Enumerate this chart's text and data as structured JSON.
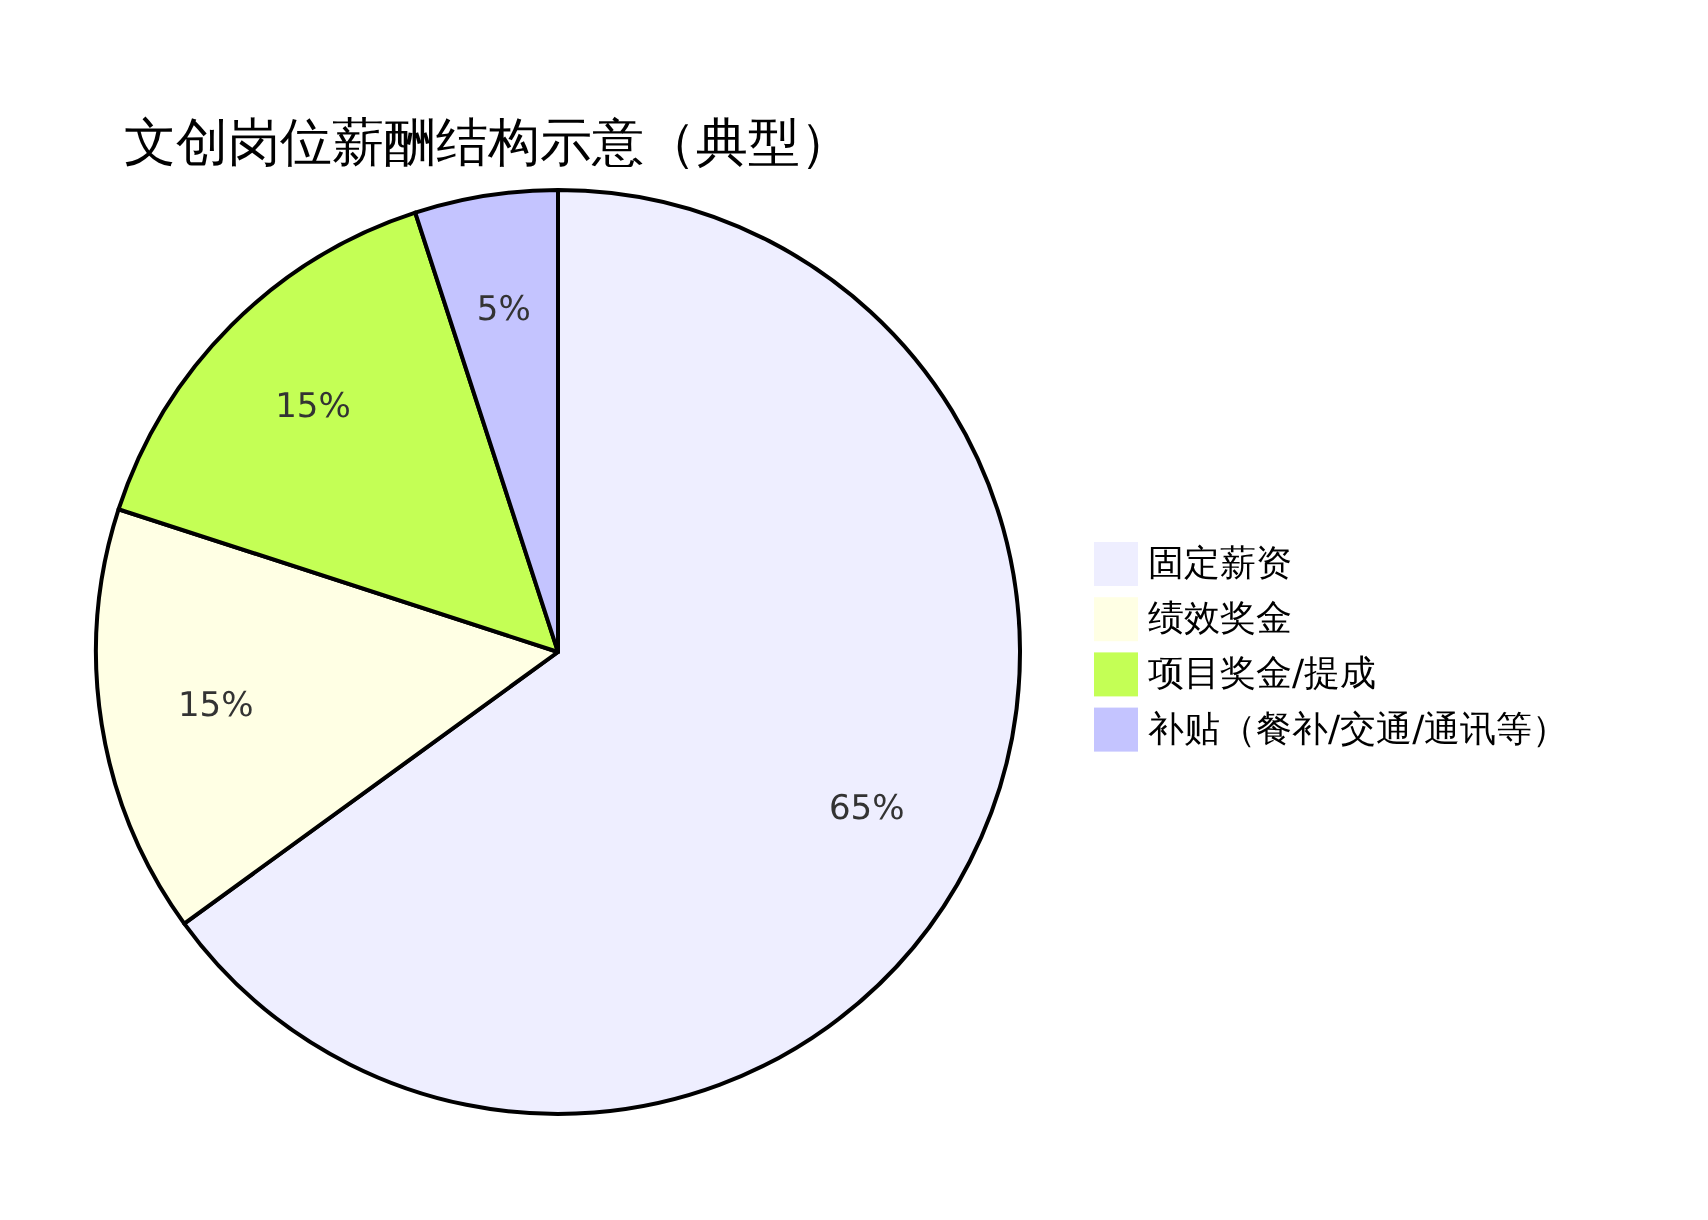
{
  "chart_data": {
    "type": "pie",
    "title": "文创岗位薪酬结构示意（典型）",
    "categories": [
      "固定薪资",
      "绩效奖金",
      "项目奖金/提成",
      "补贴（餐补/交通/通讯等）"
    ],
    "values": [
      65,
      15,
      15,
      5
    ],
    "colors": [
      "#eeeeff",
      "#ffffe4",
      "#c4ff55",
      "#c4c4ff"
    ],
    "value_labels": [
      "65%",
      "15%",
      "15%",
      "5%"
    ],
    "legend": "right"
  }
}
